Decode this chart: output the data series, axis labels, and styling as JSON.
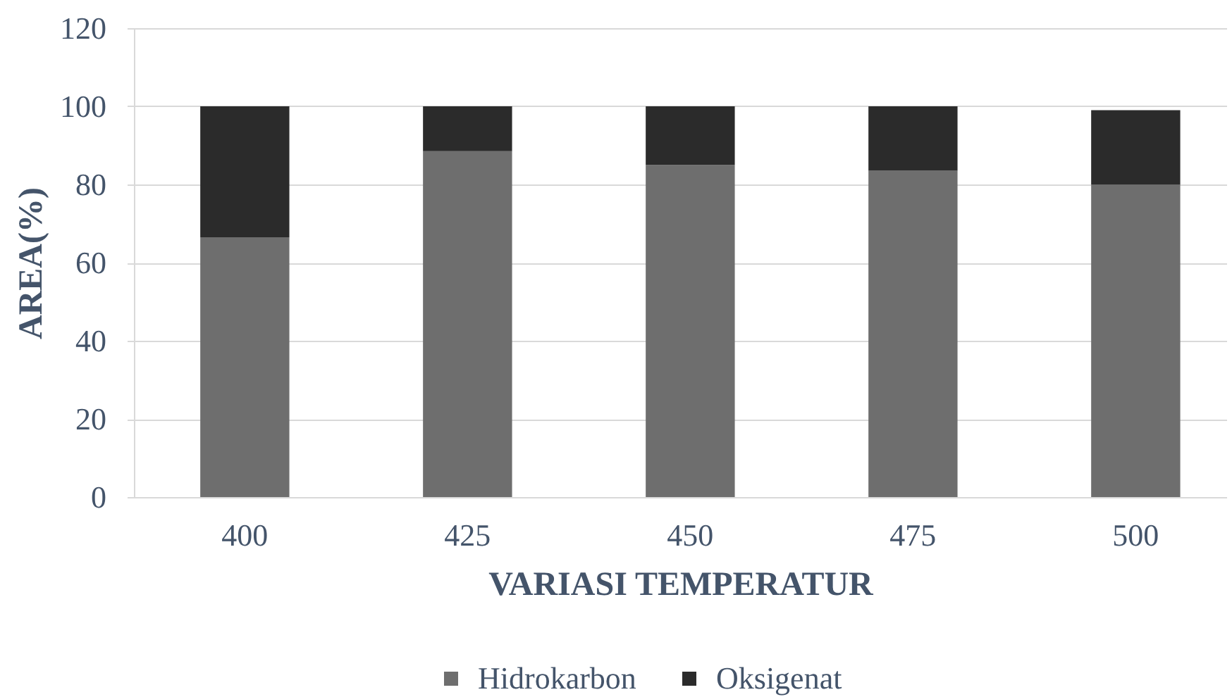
{
  "chart_data": {
    "type": "bar",
    "stacked": true,
    "categories": [
      "400",
      "425",
      "450",
      "475",
      "500"
    ],
    "series": [
      {
        "name": "Hidrokarbon",
        "color": "#6e6e6e",
        "values": [
          66.5,
          88.5,
          85,
          83.5,
          80
        ]
      },
      {
        "name": "Oksigenat",
        "color": "#2b2b2b",
        "values": [
          33.5,
          11.5,
          15,
          16.5,
          19
        ]
      }
    ],
    "xlabel": "VARIASI TEMPERATUR",
    "ylabel": "AREA(%)",
    "ylim": [
      0,
      120
    ],
    "yticks": [
      0,
      20,
      40,
      60,
      80,
      100,
      120
    ],
    "grid": "y",
    "legend": "bottom"
  }
}
